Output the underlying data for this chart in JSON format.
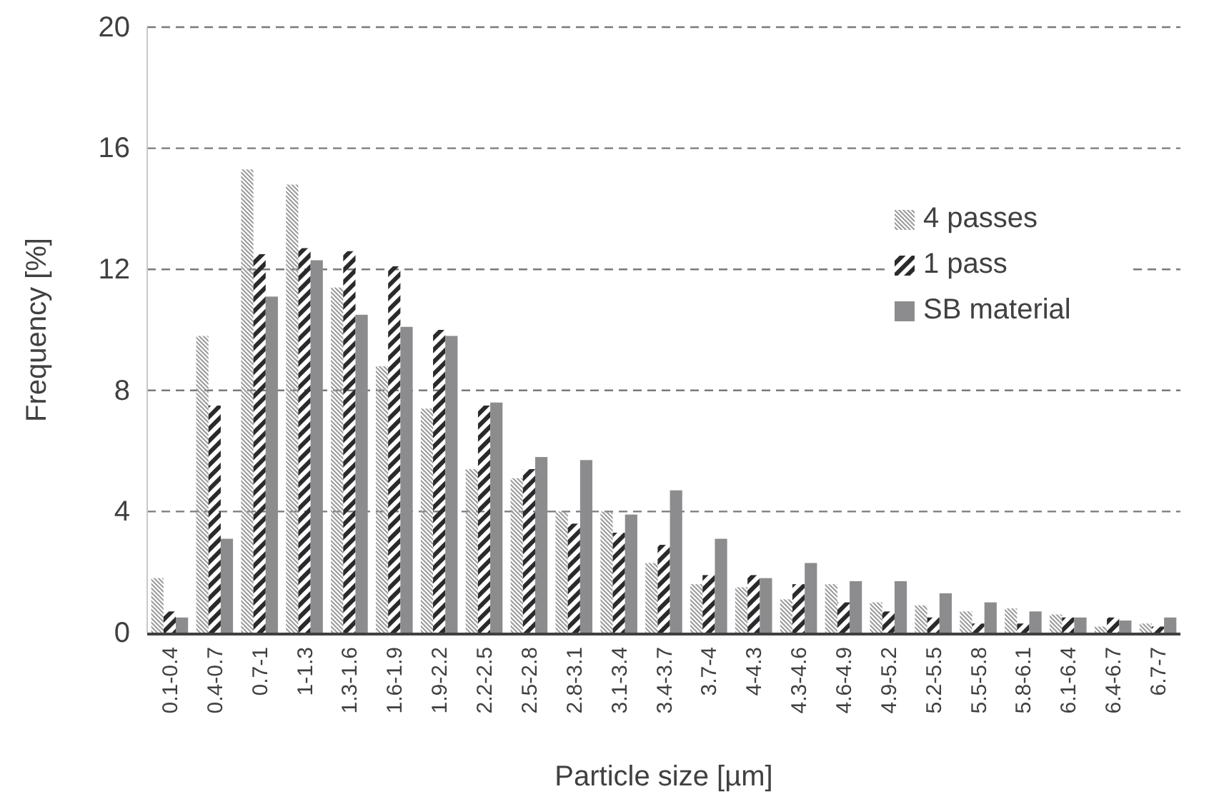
{
  "chart_data": {
    "type": "bar",
    "xlabel": "Particle size [µm]",
    "ylabel": "Frequency [%]",
    "categories": [
      "0.1-0.4",
      "0.4-0.7",
      "0.7-1",
      "1-1.3",
      "1.3-1.6",
      "1.6-1.9",
      "1.9-2.2",
      "2.2-2.5",
      "2.5-2.8",
      "2.8-3.1",
      "3.1-3.4",
      "3.4-3.7",
      "3.7-4",
      "4-4.3",
      "4.3-4.6",
      "4.6-4.9",
      "4.9-5.2",
      "5.2-5.5",
      "5.5-5.8",
      "5.8-6.1",
      "6.1-6.4",
      "6.4-6.7",
      "6.7-7"
    ],
    "series": [
      {
        "name": "4 passes",
        "color": "#9a9a9a",
        "values": [
          1.8,
          9.8,
          15.3,
          14.8,
          11.4,
          8.8,
          7.4,
          5.4,
          5.1,
          4.0,
          4.0,
          2.3,
          1.6,
          1.5,
          1.1,
          1.6,
          1.0,
          0.9,
          0.7,
          0.8,
          0.6,
          0.2,
          0.3
        ]
      },
      {
        "name": "1 pass",
        "color": "#2a2a2a",
        "values": [
          0.7,
          7.5,
          12.5,
          12.7,
          12.6,
          12.1,
          10.0,
          7.5,
          5.4,
          3.6,
          3.3,
          2.9,
          1.9,
          1.9,
          1.6,
          1.0,
          0.7,
          0.5,
          0.3,
          0.3,
          0.5,
          0.5,
          0.2
        ]
      },
      {
        "name": "SB material",
        "color": "#8c8c8e",
        "values": [
          0.5,
          3.1,
          11.1,
          12.3,
          10.5,
          10.1,
          9.8,
          7.6,
          5.8,
          5.7,
          3.9,
          4.7,
          3.1,
          1.8,
          2.3,
          1.7,
          1.7,
          1.3,
          1.0,
          0.7,
          0.5,
          0.4,
          0.5
        ]
      }
    ],
    "ylim": [
      0,
      20
    ],
    "yticks": [
      0,
      4,
      8,
      12,
      16,
      20
    ],
    "grid": "y",
    "legend": "top right"
  }
}
